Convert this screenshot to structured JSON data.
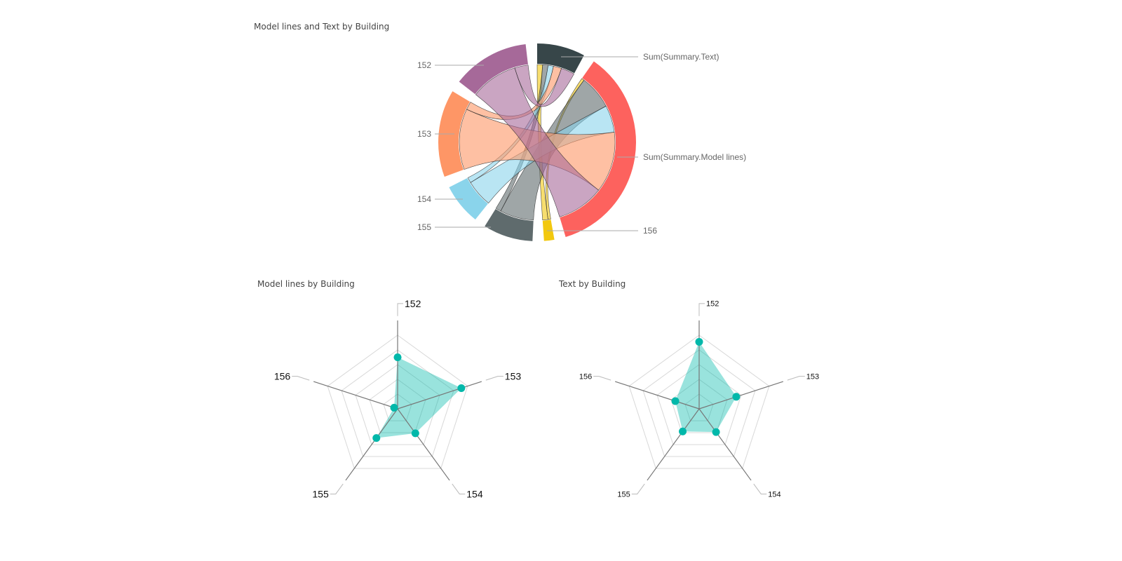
{
  "chart_data": [
    {
      "type": "chord",
      "title": "Model lines and Text by Building",
      "groups": [
        {
          "name": "Sum(Summary.Text)",
          "color": "#374649"
        },
        {
          "name": "Sum(Summary.Model lines)",
          "color": "#FD625E"
        },
        {
          "name": "156",
          "color": "#F2C80F"
        },
        {
          "name": "155",
          "color": "#5F6B6D"
        },
        {
          "name": "154",
          "color": "#8AD4EB"
        },
        {
          "name": "153",
          "color": "#FE9666"
        },
        {
          "name": "152",
          "color": "#A66999"
        }
      ],
      "buildings": [
        "156",
        "155",
        "154",
        "153",
        "152"
      ],
      "flows": {
        "Sum(Summary.Text)": [
          4,
          4,
          4,
          6,
          10
        ],
        "Sum(Summary.Model lines)": [
          2,
          25,
          20,
          45,
          35
        ]
      }
    },
    {
      "type": "radar",
      "title": "Model lines by Building",
      "categories": [
        "152",
        "153",
        "154",
        "155",
        "156"
      ],
      "values": [
        0.7,
        0.91,
        0.41,
        0.49,
        0.05
      ],
      "range": [
        0,
        1
      ],
      "levels": 5,
      "color": "#01B8AA"
    },
    {
      "type": "radar",
      "title": "Text by Building",
      "categories": [
        "152",
        "153",
        "154",
        "155",
        "156"
      ],
      "values": [
        0.91,
        0.53,
        0.39,
        0.38,
        0.34
      ],
      "range": [
        0,
        1
      ],
      "levels": 5,
      "color": "#01B8AA"
    }
  ]
}
